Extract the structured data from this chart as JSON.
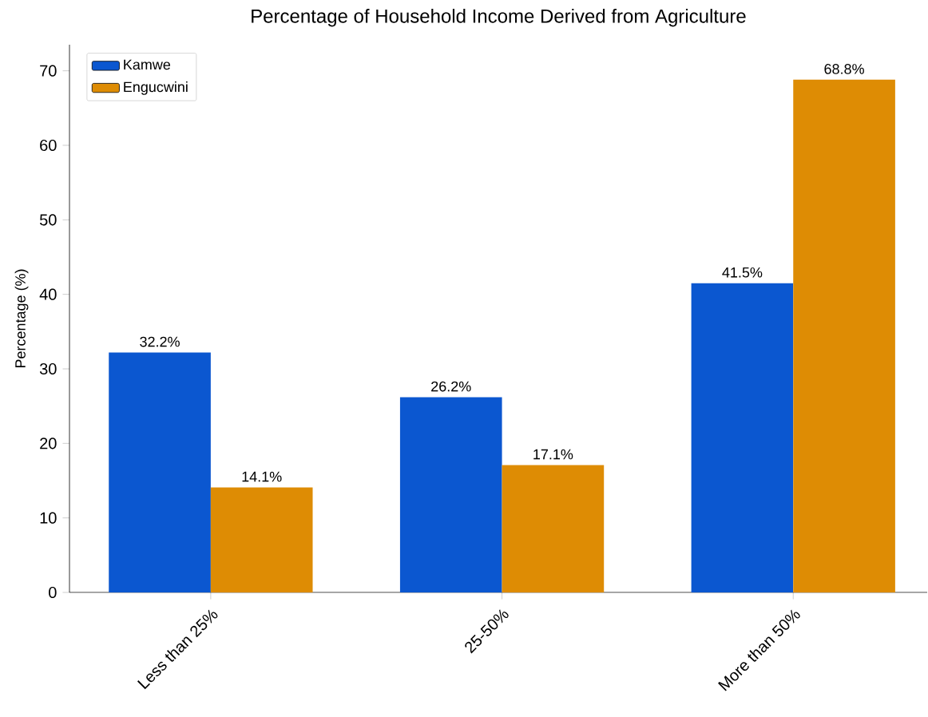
{
  "chart_data": {
    "type": "bar",
    "title": "Percentage of Household Income Derived from Agriculture",
    "ylabel": "Percentage (%)",
    "categories": [
      "Less than 25%",
      "25-50%",
      "More than 50%"
    ],
    "series": [
      {
        "name": "Kamwe",
        "color": "#0b57d0",
        "values": [
          32.2,
          26.2,
          41.5
        ],
        "value_labels": [
          "32.2%",
          "26.2%",
          "41.5%"
        ]
      },
      {
        "name": "Engucwini",
        "color": "#de8c04",
        "values": [
          14.1,
          17.1,
          68.8
        ],
        "value_labels": [
          "14.1%",
          "17.1%",
          "68.8%"
        ]
      }
    ],
    "ylim": [
      0,
      73.5
    ],
    "yticks": [
      0,
      10,
      20,
      30,
      40,
      50,
      60,
      70
    ],
    "legend": "top left",
    "grid": false
  }
}
